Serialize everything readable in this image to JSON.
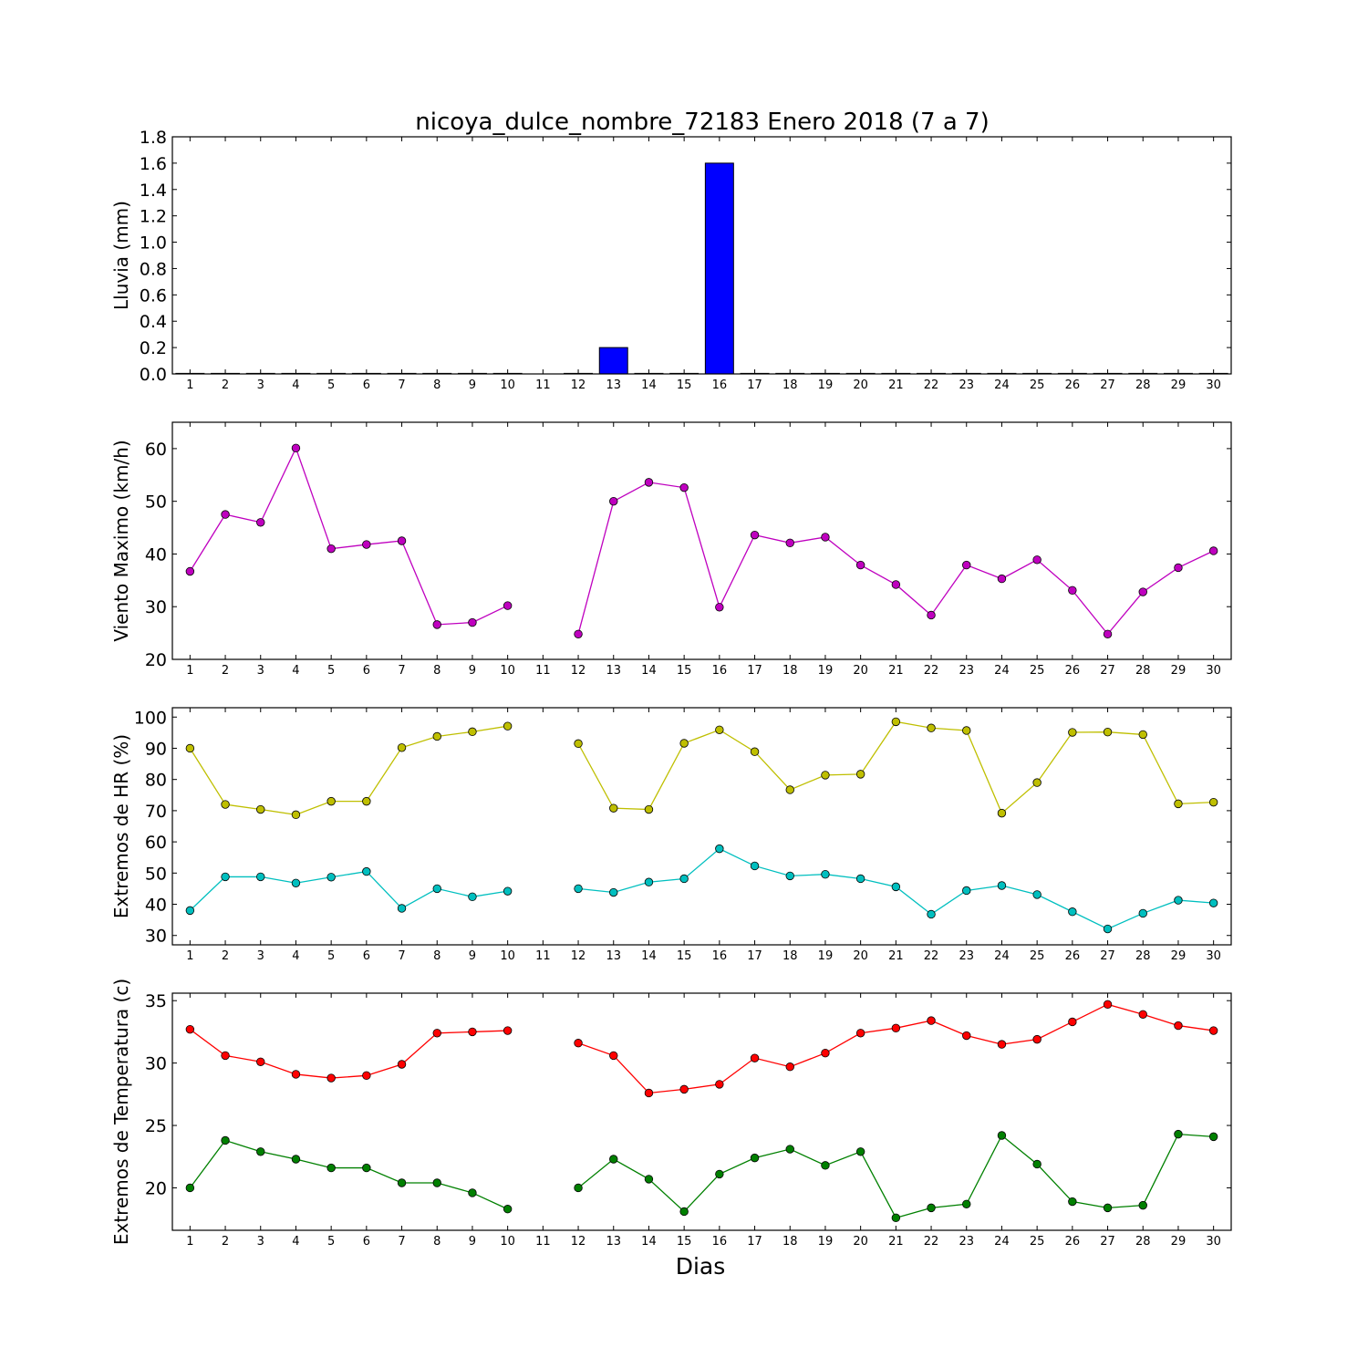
{
  "chart_data": [
    {
      "type": "bar",
      "title": "nicoya_dulce_nombre_72183 Enero 2018  (7 a 7)",
      "ylabel": "Lluvia (mm)",
      "xlabel": "",
      "x": [
        1,
        2,
        3,
        4,
        5,
        6,
        7,
        8,
        9,
        10,
        11,
        12,
        13,
        14,
        15,
        16,
        17,
        18,
        19,
        20,
        21,
        22,
        23,
        24,
        25,
        26,
        27,
        28,
        29,
        30
      ],
      "ylim": [
        0,
        1.8
      ],
      "yticks": [
        "0.0",
        "0.2",
        "0.4",
        "0.6",
        "0.8",
        "1.0",
        "1.2",
        "1.4",
        "1.6",
        "1.8"
      ],
      "series": [
        {
          "color": "#0000ff",
          "values": [
            0,
            0,
            0,
            0,
            0,
            0,
            0,
            0,
            0,
            0,
            null,
            0,
            0.2,
            0,
            0,
            1.6,
            0,
            0,
            0,
            0,
            0,
            0,
            0,
            0,
            0,
            0,
            0,
            0,
            0,
            0
          ]
        }
      ]
    },
    {
      "type": "line",
      "ylabel": "Viento Maximo (km/h)",
      "xlabel": "",
      "x": [
        1,
        2,
        3,
        4,
        5,
        6,
        7,
        8,
        9,
        10,
        11,
        12,
        13,
        14,
        15,
        16,
        17,
        18,
        19,
        20,
        21,
        22,
        23,
        24,
        25,
        26,
        27,
        28,
        29,
        30
      ],
      "ylim": [
        20,
        65
      ],
      "yticks": [
        "20",
        "30",
        "40",
        "50",
        "60"
      ],
      "series": [
        {
          "color": "#bf00bf",
          "values": [
            36.7,
            47.5,
            46.0,
            60.1,
            41.0,
            41.8,
            42.5,
            26.6,
            27.0,
            30.2,
            null,
            24.8,
            50.0,
            53.6,
            52.6,
            29.9,
            43.6,
            42.1,
            43.2,
            37.9,
            34.2,
            28.4,
            37.9,
            35.3,
            38.9,
            33.1,
            24.8,
            32.8,
            37.4,
            40.6
          ]
        }
      ]
    },
    {
      "type": "line",
      "ylabel": "Extremos de HR (%)",
      "xlabel": "",
      "x": [
        1,
        2,
        3,
        4,
        5,
        6,
        7,
        8,
        9,
        10,
        11,
        12,
        13,
        14,
        15,
        16,
        17,
        18,
        19,
        20,
        21,
        22,
        23,
        24,
        25,
        26,
        27,
        28,
        29,
        30
      ],
      "ylim": [
        27,
        103
      ],
      "yticks": [
        "30",
        "40",
        "50",
        "60",
        "70",
        "80",
        "90",
        "100"
      ],
      "series": [
        {
          "color": "#bfbf00",
          "values": [
            90,
            72,
            70.4,
            68.7,
            73,
            73,
            90.2,
            93.8,
            95.3,
            97.1,
            null,
            91.5,
            70.8,
            70.4,
            91.6,
            95.9,
            88.9,
            76.7,
            81.4,
            81.7,
            98.5,
            96.5,
            95.7,
            69.2,
            79,
            95.1,
            95.2,
            94.4,
            72.2,
            72.7
          ]
        },
        {
          "color": "#00bfbf",
          "values": [
            38,
            48.8,
            48.8,
            46.8,
            48.7,
            50.5,
            38.7,
            45,
            42.4,
            44.2,
            null,
            45,
            43.8,
            47.1,
            48.2,
            57.8,
            52.3,
            49.1,
            49.6,
            48.2,
            45.6,
            36.8,
            44.4,
            46,
            43.1,
            37.6,
            32.1,
            37.1,
            41.3,
            40.4
          ]
        }
      ]
    },
    {
      "type": "line",
      "ylabel": "Extremos de Temperatura (c)",
      "xlabel": "Dias",
      "x": [
        1,
        2,
        3,
        4,
        5,
        6,
        7,
        8,
        9,
        10,
        11,
        12,
        13,
        14,
        15,
        16,
        17,
        18,
        19,
        20,
        21,
        22,
        23,
        24,
        25,
        26,
        27,
        28,
        29,
        30
      ],
      "ylim": [
        16.6,
        35.6
      ],
      "yticks": [
        "20",
        "25",
        "30",
        "35"
      ],
      "series": [
        {
          "color": "#ff0000",
          "values": [
            32.7,
            30.6,
            30.1,
            29.1,
            28.8,
            29.0,
            29.9,
            32.4,
            32.5,
            32.6,
            null,
            31.6,
            30.6,
            27.6,
            27.9,
            28.3,
            30.4,
            29.7,
            30.8,
            32.4,
            32.8,
            33.4,
            32.2,
            31.5,
            31.9,
            33.3,
            34.7,
            33.9,
            33.0,
            32.6
          ]
        },
        {
          "color": "#008000",
          "values": [
            20.0,
            23.8,
            22.9,
            22.3,
            21.6,
            21.6,
            20.4,
            20.4,
            19.6,
            18.3,
            null,
            20.0,
            22.3,
            20.7,
            18.1,
            21.1,
            22.4,
            23.1,
            21.8,
            22.9,
            17.6,
            18.4,
            18.7,
            24.2,
            21.9,
            18.9,
            18.4,
            18.6,
            24.3,
            24.1
          ]
        }
      ]
    }
  ]
}
